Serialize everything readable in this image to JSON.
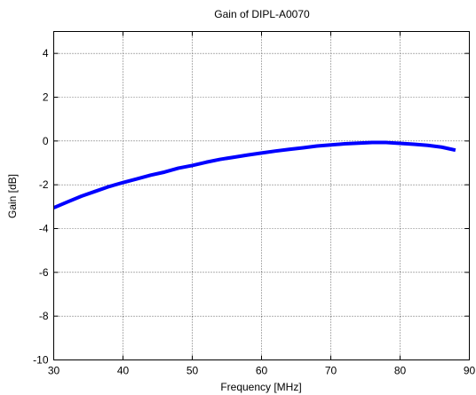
{
  "chart_data": {
    "type": "line",
    "title": "Gain of DIPL-A0070",
    "xlabel": "Frequency [MHz]",
    "ylabel": "Gain [dB]",
    "xlim": [
      30,
      90
    ],
    "ylim": [
      -10,
      5
    ],
    "xticks": [
      30,
      40,
      50,
      60,
      70,
      80,
      90
    ],
    "yticks": [
      -10,
      -8,
      -6,
      -4,
      -2,
      0,
      2,
      4
    ],
    "grid": true,
    "series": [
      {
        "color": "#0000ff",
        "x": [
          30,
          32,
          34,
          36,
          38,
          40,
          42,
          44,
          46,
          48,
          50,
          52,
          54,
          56,
          58,
          60,
          62,
          64,
          66,
          68,
          70,
          72,
          74,
          76,
          78,
          80,
          82,
          84,
          86,
          88
        ],
        "y": [
          -3.05,
          -2.78,
          -2.52,
          -2.3,
          -2.08,
          -1.9,
          -1.73,
          -1.56,
          -1.42,
          -1.24,
          -1.12,
          -0.97,
          -0.84,
          -0.74,
          -0.64,
          -0.55,
          -0.46,
          -0.38,
          -0.31,
          -0.23,
          -0.18,
          -0.13,
          -0.1,
          -0.07,
          -0.07,
          -0.11,
          -0.15,
          -0.2,
          -0.28,
          -0.42
        ]
      }
    ]
  }
}
